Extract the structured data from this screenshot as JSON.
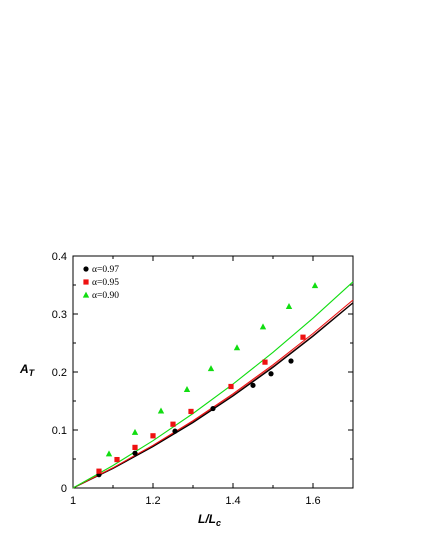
{
  "chart_data": {
    "type": "scatter",
    "xlim": [
      1.0,
      1.7
    ],
    "ylim": [
      0.0,
      0.4
    ],
    "x_ticks": [
      1.0,
      1.2,
      1.4,
      1.6
    ],
    "x_tick_labels": [
      "1",
      "1.2",
      "1.4",
      "1.6"
    ],
    "y_ticks": [
      0.0,
      0.1,
      0.2,
      0.3,
      0.4
    ],
    "y_tick_labels": [
      "0",
      "0.1",
      "0.2",
      "0.3",
      "0.4"
    ],
    "xlabel": {
      "main": "L/L",
      "sub": "c"
    },
    "ylabel": {
      "main": "A",
      "sub": "T"
    },
    "legend_position": "top-left",
    "grid": false,
    "series": [
      {
        "name": "α=0.97",
        "color": "#000000",
        "marker": "circle",
        "points": [
          {
            "x": 1.065,
            "y": 0.023
          },
          {
            "x": 1.155,
            "y": 0.06
          },
          {
            "x": 1.255,
            "y": 0.098
          },
          {
            "x": 1.35,
            "y": 0.137
          },
          {
            "x": 1.45,
            "y": 0.177
          },
          {
            "x": 1.495,
            "y": 0.197
          },
          {
            "x": 1.545,
            "y": 0.219
          }
        ],
        "fit_curve": [
          {
            "x": 1.0,
            "y": 0.0
          },
          {
            "x": 1.1,
            "y": 0.0336
          },
          {
            "x": 1.2,
            "y": 0.0712
          },
          {
            "x": 1.3,
            "y": 0.1128
          },
          {
            "x": 1.4,
            "y": 0.1584
          },
          {
            "x": 1.5,
            "y": 0.208
          },
          {
            "x": 1.6,
            "y": 0.2616
          },
          {
            "x": 1.7,
            "y": 0.3192
          }
        ]
      },
      {
        "name": "α=0.95",
        "color": "#ee1111",
        "marker": "square",
        "points": [
          {
            "x": 1.065,
            "y": 0.029
          },
          {
            "x": 1.11,
            "y": 0.049
          },
          {
            "x": 1.155,
            "y": 0.07
          },
          {
            "x": 1.2,
            "y": 0.09
          },
          {
            "x": 1.25,
            "y": 0.11
          },
          {
            "x": 1.295,
            "y": 0.132
          },
          {
            "x": 1.395,
            "y": 0.175
          },
          {
            "x": 1.48,
            "y": 0.217
          },
          {
            "x": 1.575,
            "y": 0.26
          }
        ],
        "fit_curve": [
          {
            "x": 1.0,
            "y": 0.0
          },
          {
            "x": 1.1,
            "y": 0.0349
          },
          {
            "x": 1.2,
            "y": 0.0736
          },
          {
            "x": 1.3,
            "y": 0.1161
          },
          {
            "x": 1.4,
            "y": 0.1624
          },
          {
            "x": 1.5,
            "y": 0.2125
          },
          {
            "x": 1.6,
            "y": 0.2664
          },
          {
            "x": 1.7,
            "y": 0.3241
          }
        ]
      },
      {
        "name": "α=0.90",
        "color": "#11dd11",
        "marker": "triangle",
        "points": [
          {
            "x": 1.09,
            "y": 0.059
          },
          {
            "x": 1.155,
            "y": 0.096
          },
          {
            "x": 1.22,
            "y": 0.133
          },
          {
            "x": 1.285,
            "y": 0.17
          },
          {
            "x": 1.345,
            "y": 0.206
          },
          {
            "x": 1.41,
            "y": 0.242
          },
          {
            "x": 1.475,
            "y": 0.278
          },
          {
            "x": 1.54,
            "y": 0.313
          },
          {
            "x": 1.605,
            "y": 0.349
          }
        ],
        "fit_curve": [
          {
            "x": 1.0,
            "y": 0.0
          },
          {
            "x": 1.1,
            "y": 0.0388
          },
          {
            "x": 1.2,
            "y": 0.0816
          },
          {
            "x": 1.3,
            "y": 0.1284
          },
          {
            "x": 1.4,
            "y": 0.1792
          },
          {
            "x": 1.5,
            "y": 0.234
          },
          {
            "x": 1.6,
            "y": 0.2928
          },
          {
            "x": 1.7,
            "y": 0.3556
          }
        ]
      }
    ],
    "extra_curves": [
      {
        "color": "#8b1a1a",
        "points": [
          {
            "x": 1.0,
            "y": 0.0
          },
          {
            "x": 1.1,
            "y": 0.0343
          },
          {
            "x": 1.2,
            "y": 0.0724
          },
          {
            "x": 1.3,
            "y": 0.1143
          },
          {
            "x": 1.4,
            "y": 0.16
          },
          {
            "x": 1.5,
            "y": 0.2095
          },
          {
            "x": 1.6,
            "y": 0.2628
          },
          {
            "x": 1.7,
            "y": 0.3199
          }
        ]
      }
    ]
  }
}
